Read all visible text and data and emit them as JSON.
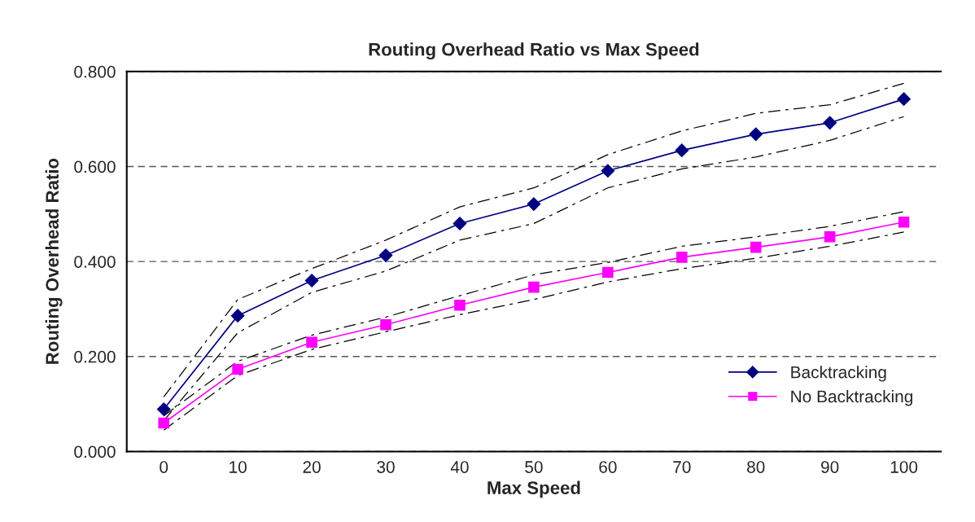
{
  "chart_data": {
    "type": "line",
    "title": "Routing Overhead Ratio vs Max Speed",
    "xlabel": "Max Speed",
    "ylabel": "Routing Overhead Ratio",
    "categories": [
      "0",
      "10",
      "20",
      "30",
      "40",
      "50",
      "60",
      "70",
      "80",
      "90",
      "100"
    ],
    "series": [
      {
        "color": "#000000",
        "marker": "none",
        "line_style": "dashed",
        "values": [
          0.115,
          0.32,
          0.385,
          0.445,
          0.515,
          0.555,
          0.625,
          0.675,
          0.712,
          0.73,
          0.775
        ]
      },
      {
        "color": "#000000",
        "marker": "none",
        "line_style": "dashed",
        "values": [
          0.065,
          0.25,
          0.335,
          0.38,
          0.445,
          0.48,
          0.555,
          0.595,
          0.62,
          0.655,
          0.705
        ]
      },
      {
        "color": "#000000",
        "marker": "none",
        "line_style": "dashed",
        "values": [
          0.075,
          0.19,
          0.245,
          0.283,
          0.328,
          0.372,
          0.398,
          0.432,
          0.452,
          0.474,
          0.505
        ]
      },
      {
        "color": "#000000",
        "marker": "none",
        "line_style": "dashed",
        "values": [
          0.045,
          0.16,
          0.215,
          0.252,
          0.288,
          0.32,
          0.357,
          0.385,
          0.407,
          0.432,
          0.462
        ]
      },
      {
        "name": "Backtracking",
        "color": "#000080",
        "marker": "diamond",
        "values": [
          0.089,
          0.286,
          0.36,
          0.413,
          0.48,
          0.521,
          0.591,
          0.634,
          0.668,
          0.692,
          0.742
        ]
      },
      {
        "name": "No Backtracking",
        "color": "#ff00ff",
        "marker": "square",
        "values": [
          0.06,
          0.173,
          0.23,
          0.267,
          0.308,
          0.346,
          0.377,
          0.409,
          0.43,
          0.452,
          0.483
        ]
      }
    ],
    "ylim": [
      0,
      0.8
    ],
    "yticks": [
      {
        "value": 0,
        "label": "0.000"
      },
      {
        "value": 0.2,
        "label": "0.200"
      },
      {
        "value": 0.4,
        "label": "0.400"
      },
      {
        "value": 0.6,
        "label": "0.600"
      },
      {
        "value": 0.8,
        "label": "0.800"
      }
    ],
    "grid": "y",
    "legend": "bottom right"
  }
}
